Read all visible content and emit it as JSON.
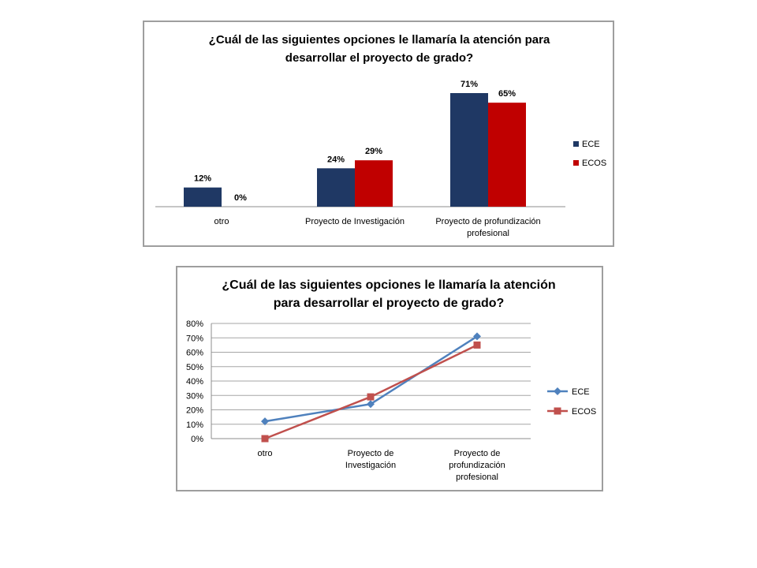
{
  "colors": {
    "ece_bar": "#1f3864",
    "ecos_bar": "#c00000",
    "ece_line": "#4f81bd",
    "ecos_line": "#c0504d",
    "border": "#9e9e9e"
  },
  "chart_data": [
    {
      "type": "bar",
      "title_lines": [
        "¿Cuál de las siguientes opciones le llamaría la atención para",
        "desarrollar el proyecto de grado?"
      ],
      "categories": [
        [
          "otro"
        ],
        [
          "Proyecto de Investigación"
        ],
        [
          "Proyecto de profundización",
          "profesional"
        ]
      ],
      "series": [
        {
          "name": "ECE",
          "values": [
            12,
            24,
            71
          ],
          "labels": [
            "12%",
            "24%",
            "71%"
          ]
        },
        {
          "name": "ECOS",
          "values": [
            0,
            29,
            65
          ],
          "labels": [
            "0%",
            "29%",
            "65%"
          ]
        }
      ],
      "ylim": [
        0,
        80
      ],
      "legend": "right"
    },
    {
      "type": "line",
      "title_lines": [
        "¿Cuál de las siguientes opciones le llamaría la atención",
        "para desarrollar el proyecto de grado?"
      ],
      "categories": [
        [
          "otro"
        ],
        [
          "Proyecto de",
          "Investigación"
        ],
        [
          "Proyecto de",
          "profundización",
          "profesional"
        ]
      ],
      "series": [
        {
          "name": "ECE",
          "values": [
            12,
            24,
            71
          ]
        },
        {
          "name": "ECOS",
          "values": [
            0,
            29,
            65
          ]
        }
      ],
      "yticks": [
        "0%",
        "10%",
        "20%",
        "30%",
        "40%",
        "50%",
        "60%",
        "70%",
        "80%"
      ],
      "ylim": [
        0,
        80
      ],
      "grid": true,
      "legend": "right"
    }
  ]
}
